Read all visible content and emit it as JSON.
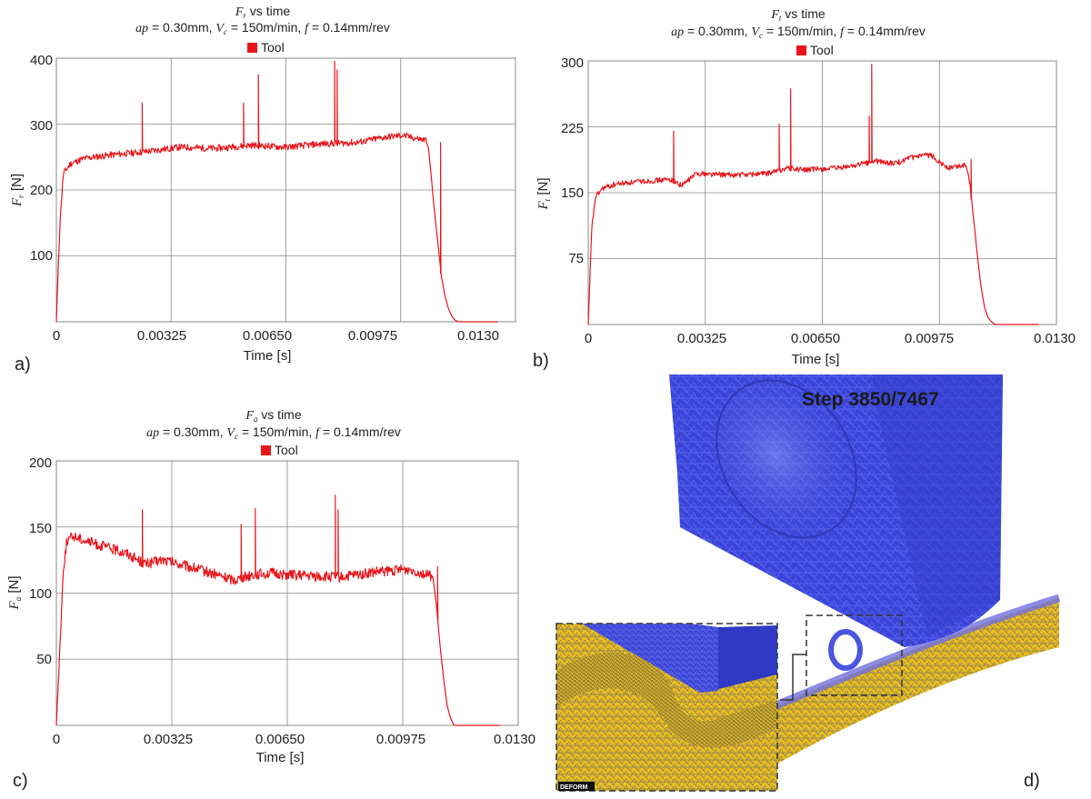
{
  "charts": [
    {
      "panel_label": "a)",
      "title_prefix": "F",
      "title_sub": "r",
      "title_suffix": " vs time",
      "legend_label": "Tool",
      "ylabel_var": "F",
      "ylabel_sub": "r",
      "ylabel_unit": " [N]",
      "xlabel": "Time [s]",
      "x_ticks": [
        "0",
        "0.00325",
        "0.00650",
        "0.00975",
        "0.0130"
      ],
      "y_ticks": [
        "100",
        "200",
        "300",
        "400"
      ]
    },
    {
      "panel_label": "b)",
      "title_prefix": "F",
      "title_sub": "t",
      "title_suffix": " vs time",
      "legend_label": "Tool",
      "ylabel_var": "F",
      "ylabel_sub": "t",
      "ylabel_unit": " [N]",
      "xlabel": "Time [s]",
      "x_ticks": [
        "0",
        "0.00325",
        "0.00650",
        "0.00975",
        "0.0130"
      ],
      "y_ticks": [
        "75",
        "150",
        "225",
        "300"
      ]
    },
    {
      "panel_label": "c)",
      "title_prefix": "F",
      "title_sub": "a",
      "title_suffix": " vs time",
      "legend_label": "Tool",
      "ylabel_var": "F",
      "ylabel_sub": "a",
      "ylabel_unit": " [N]",
      "xlabel": "Time [s]",
      "x_ticks": [
        "0",
        "0.00325",
        "0.00650",
        "0.00975",
        "0.0130"
      ],
      "y_ticks": [
        "50",
        "100",
        "150",
        "200"
      ]
    }
  ],
  "subtitle": {
    "ap_var": "ap",
    "ap_text": " = 0.30mm, ",
    "vc_var": "V",
    "vc_sub": "c",
    "vc_text": " = 150m/min, ",
    "f_var": "f",
    "f_text": " = 0.14mm/rev"
  },
  "simulation": {
    "panel_label": "d)",
    "step_label": "Step 3850/7467",
    "logo_text": "DEFORM"
  },
  "colors": {
    "series": "#e8161b",
    "grid": "#8a8a8a",
    "tool_mesh": "#3a45d8",
    "workpiece": "#e9bf1e"
  },
  "chart_data": [
    {
      "type": "line",
      "title": "Fr vs time",
      "subtitle": "ap = 0.30mm, Vc = 150m/min, f = 0.14mm/rev",
      "xlabel": "Time [s]",
      "ylabel": "Fr [N]",
      "xlim": [
        0,
        0.013
      ],
      "ylim": [
        0,
        400
      ],
      "grid": true,
      "legend": "top-center",
      "series": [
        {
          "name": "Tool",
          "color": "#e8161b",
          "x": [
            0,
            0.0001,
            0.0002,
            0.0004,
            0.0008,
            0.0015,
            0.0025,
            0.0035,
            0.0045,
            0.0055,
            0.0065,
            0.0075,
            0.0085,
            0.0093,
            0.0098,
            0.0102,
            0.0105,
            0.0106,
            0.0107,
            0.0108,
            0.0109,
            0.011,
            0.0111,
            0.0112,
            0.0113,
            0.0114,
            0.012,
            0.0125
          ],
          "y": [
            0,
            150,
            225,
            240,
            248,
            253,
            258,
            265,
            263,
            268,
            265,
            270,
            272,
            280,
            283,
            278,
            275,
            230,
            170,
            120,
            70,
            40,
            20,
            8,
            2,
            0,
            0,
            0
          ],
          "noise": 5,
          "spikes": [
            {
              "x": 0.00243,
              "y": 332
            },
            {
              "x": 0.0053,
              "y": 332
            },
            {
              "x": 0.00572,
              "y": 375
            },
            {
              "x": 0.00788,
              "y": 395
            },
            {
              "x": 0.00795,
              "y": 382
            },
            {
              "x": 0.01088,
              "y": 272
            }
          ]
        }
      ]
    },
    {
      "type": "line",
      "title": "Ft vs time",
      "subtitle": "ap = 0.30mm, Vc = 150m/min, f = 0.14mm/rev",
      "xlabel": "Time [s]",
      "ylabel": "Ft [N]",
      "xlim": [
        0,
        0.013
      ],
      "ylim": [
        0,
        300
      ],
      "grid": true,
      "legend": "top-center",
      "series": [
        {
          "name": "Tool",
          "color": "#e8161b",
          "x": [
            0,
            0.0001,
            0.0002,
            0.0004,
            0.0008,
            0.0015,
            0.0023,
            0.0026,
            0.003,
            0.004,
            0.005,
            0.0055,
            0.006,
            0.007,
            0.008,
            0.0085,
            0.009,
            0.0095,
            0.01,
            0.0105,
            0.0106,
            0.0107,
            0.0108,
            0.0109,
            0.011,
            0.0111,
            0.0112,
            0.0113,
            0.0115,
            0.012,
            0.0125
          ],
          "y": [
            0,
            110,
            145,
            155,
            160,
            163,
            165,
            158,
            172,
            170,
            172,
            178,
            176,
            178,
            186,
            183,
            190,
            193,
            178,
            182,
            160,
            120,
            80,
            45,
            20,
            8,
            3,
            0,
            0,
            0,
            0
          ],
          "noise": 3,
          "spikes": [
            {
              "x": 0.00237,
              "y": 220
            },
            {
              "x": 0.0053,
              "y": 228
            },
            {
              "x": 0.00562,
              "y": 268
            },
            {
              "x": 0.0078,
              "y": 237
            },
            {
              "x": 0.00787,
              "y": 296
            },
            {
              "x": 0.01063,
              "y": 188
            }
          ]
        }
      ]
    },
    {
      "type": "line",
      "title": "Fa vs time",
      "subtitle": "ap = 0.30mm, Vc = 150m/min, f = 0.14mm/rev",
      "xlabel": "Time [s]",
      "ylabel": "Fa [N]",
      "xlim": [
        0,
        0.013
      ],
      "ylim": [
        0,
        200
      ],
      "grid": true,
      "legend": "top-center",
      "series": [
        {
          "name": "Tool",
          "color": "#e8161b",
          "x": [
            0,
            0.0001,
            0.0002,
            0.0003,
            0.0005,
            0.001,
            0.002,
            0.0025,
            0.003,
            0.004,
            0.005,
            0.0055,
            0.006,
            0.007,
            0.008,
            0.009,
            0.01,
            0.0106,
            0.0107,
            0.0108,
            0.0109,
            0.011,
            0.0111,
            0.0112,
            0.0113,
            0.0115,
            0.012,
            0.0125
          ],
          "y": [
            0,
            60,
            120,
            140,
            143,
            138,
            130,
            122,
            125,
            118,
            110,
            114,
            115,
            113,
            112,
            116,
            118,
            112,
            90,
            60,
            35,
            15,
            5,
            0,
            0,
            0,
            0,
            0
          ],
          "noise": 4,
          "spikes": [
            {
              "x": 0.00242,
              "y": 163
            },
            {
              "x": 0.0052,
              "y": 152
            },
            {
              "x": 0.0056,
              "y": 164
            },
            {
              "x": 0.00785,
              "y": 174
            },
            {
              "x": 0.00793,
              "y": 163
            },
            {
              "x": 0.01073,
              "y": 120
            }
          ]
        }
      ]
    }
  ]
}
